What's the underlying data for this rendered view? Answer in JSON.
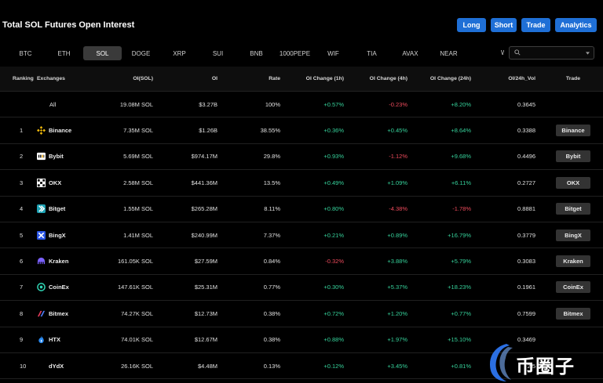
{
  "header": {
    "title": "Total SOL Futures Open Interest",
    "buttons": [
      "Long",
      "Short",
      "Trade",
      "Analytics"
    ]
  },
  "coin_tabs": [
    "BTC",
    "ETH",
    "SOL",
    "DOGE",
    "XRP",
    "SUI",
    "BNB",
    "1000PEPE",
    "WIF",
    "TIA",
    "AVAX",
    "NEAR"
  ],
  "coin_tabs_active": "SOL",
  "coin_tabs_overflow": "W",
  "search": {
    "value": "",
    "placeholder": ""
  },
  "table": {
    "headers": {
      "rank": "Ranking",
      "exchange": "Exchanges",
      "oi_sol": "OI(SOL)",
      "oi": "OI",
      "rate": "Rate",
      "ch1": "OI Change (1h)",
      "ch4": "OI Change (4h)",
      "ch24": "OI Change (24h)",
      "vol": "OI/24h_Vol",
      "trade": "Trade"
    },
    "all_row": {
      "label": "All",
      "oi_sol": "19.08M SOL",
      "oi": "$3.27B",
      "rate": "100%",
      "ch1": "+0.57%",
      "ch4": "-0.23%",
      "ch24": "+8.20%",
      "vol": "0.3645"
    },
    "rows": [
      {
        "rank": "1",
        "exchange": "Binance",
        "oi_sol": "7.35M SOL",
        "oi": "$1.26B",
        "rate": "38.55%",
        "ch1": "+0.36%",
        "ch4": "+0.45%",
        "ch24": "+8.64%",
        "vol": "0.3388",
        "trade": "Binance"
      },
      {
        "rank": "2",
        "exchange": "Bybit",
        "oi_sol": "5.69M SOL",
        "oi": "$974.17M",
        "rate": "29.8%",
        "ch1": "+0.93%",
        "ch4": "-1.12%",
        "ch24": "+9.68%",
        "vol": "0.4496",
        "trade": "Bybit"
      },
      {
        "rank": "3",
        "exchange": "OKX",
        "oi_sol": "2.58M SOL",
        "oi": "$441.36M",
        "rate": "13.5%",
        "ch1": "+0.49%",
        "ch4": "+1.09%",
        "ch24": "+6.11%",
        "vol": "0.2727",
        "trade": "OKX"
      },
      {
        "rank": "4",
        "exchange": "Bitget",
        "oi_sol": "1.55M SOL",
        "oi": "$265.28M",
        "rate": "8.11%",
        "ch1": "+0.80%",
        "ch4": "-4.38%",
        "ch24": "-1.78%",
        "vol": "0.8881",
        "trade": "Bitget"
      },
      {
        "rank": "5",
        "exchange": "BingX",
        "oi_sol": "1.41M SOL",
        "oi": "$240.99M",
        "rate": "7.37%",
        "ch1": "+0.21%",
        "ch4": "+0.89%",
        "ch24": "+16.79%",
        "vol": "0.3779",
        "trade": "BingX"
      },
      {
        "rank": "6",
        "exchange": "Kraken",
        "oi_sol": "161.05K SOL",
        "oi": "$27.59M",
        "rate": "0.84%",
        "ch1": "-0.32%",
        "ch4": "+3.88%",
        "ch24": "+5.79%",
        "vol": "0.3083",
        "trade": "Kraken"
      },
      {
        "rank": "7",
        "exchange": "CoinEx",
        "oi_sol": "147.61K SOL",
        "oi": "$25.31M",
        "rate": "0.77%",
        "ch1": "+0.30%",
        "ch4": "+5.37%",
        "ch24": "+18.23%",
        "vol": "0.1961",
        "trade": "CoinEx"
      },
      {
        "rank": "8",
        "exchange": "Bitmex",
        "oi_sol": "74.27K SOL",
        "oi": "$12.73M",
        "rate": "0.38%",
        "ch1": "+0.72%",
        "ch4": "+1.20%",
        "ch24": "+0.77%",
        "vol": "0.7599",
        "trade": "Bitmex"
      },
      {
        "rank": "9",
        "exchange": "HTX",
        "oi_sol": "74.01K SOL",
        "oi": "$12.67M",
        "rate": "0.38%",
        "ch1": "+0.88%",
        "ch4": "+1.97%",
        "ch24": "+15.10%",
        "vol": "0.3469",
        "trade": ""
      },
      {
        "rank": "10",
        "exchange": "dYdX",
        "oi_sol": "26.16K SOL",
        "oi": "$4.48M",
        "rate": "0.13%",
        "ch1": "+0.12%",
        "ch4": "+3.45%",
        "ch24": "+0.81%",
        "vol": "2.5",
        "trade": ""
      }
    ]
  },
  "watermark": {
    "text": "币圈子"
  },
  "colors": {
    "accent": "#1f6fd6",
    "positive": "#36d29b",
    "negative": "#ee4b5c",
    "background": "#000000"
  },
  "icons": {
    "Binance": "binance-icon",
    "Bybit": "bybit-icon",
    "OKX": "okx-icon",
    "Bitget": "bitget-icon",
    "BingX": "bingx-icon",
    "Kraken": "kraken-icon",
    "CoinEx": "coinex-icon",
    "Bitmex": "bitmex-icon",
    "HTX": "htx-icon",
    "dYdX": "dydx-icon"
  }
}
